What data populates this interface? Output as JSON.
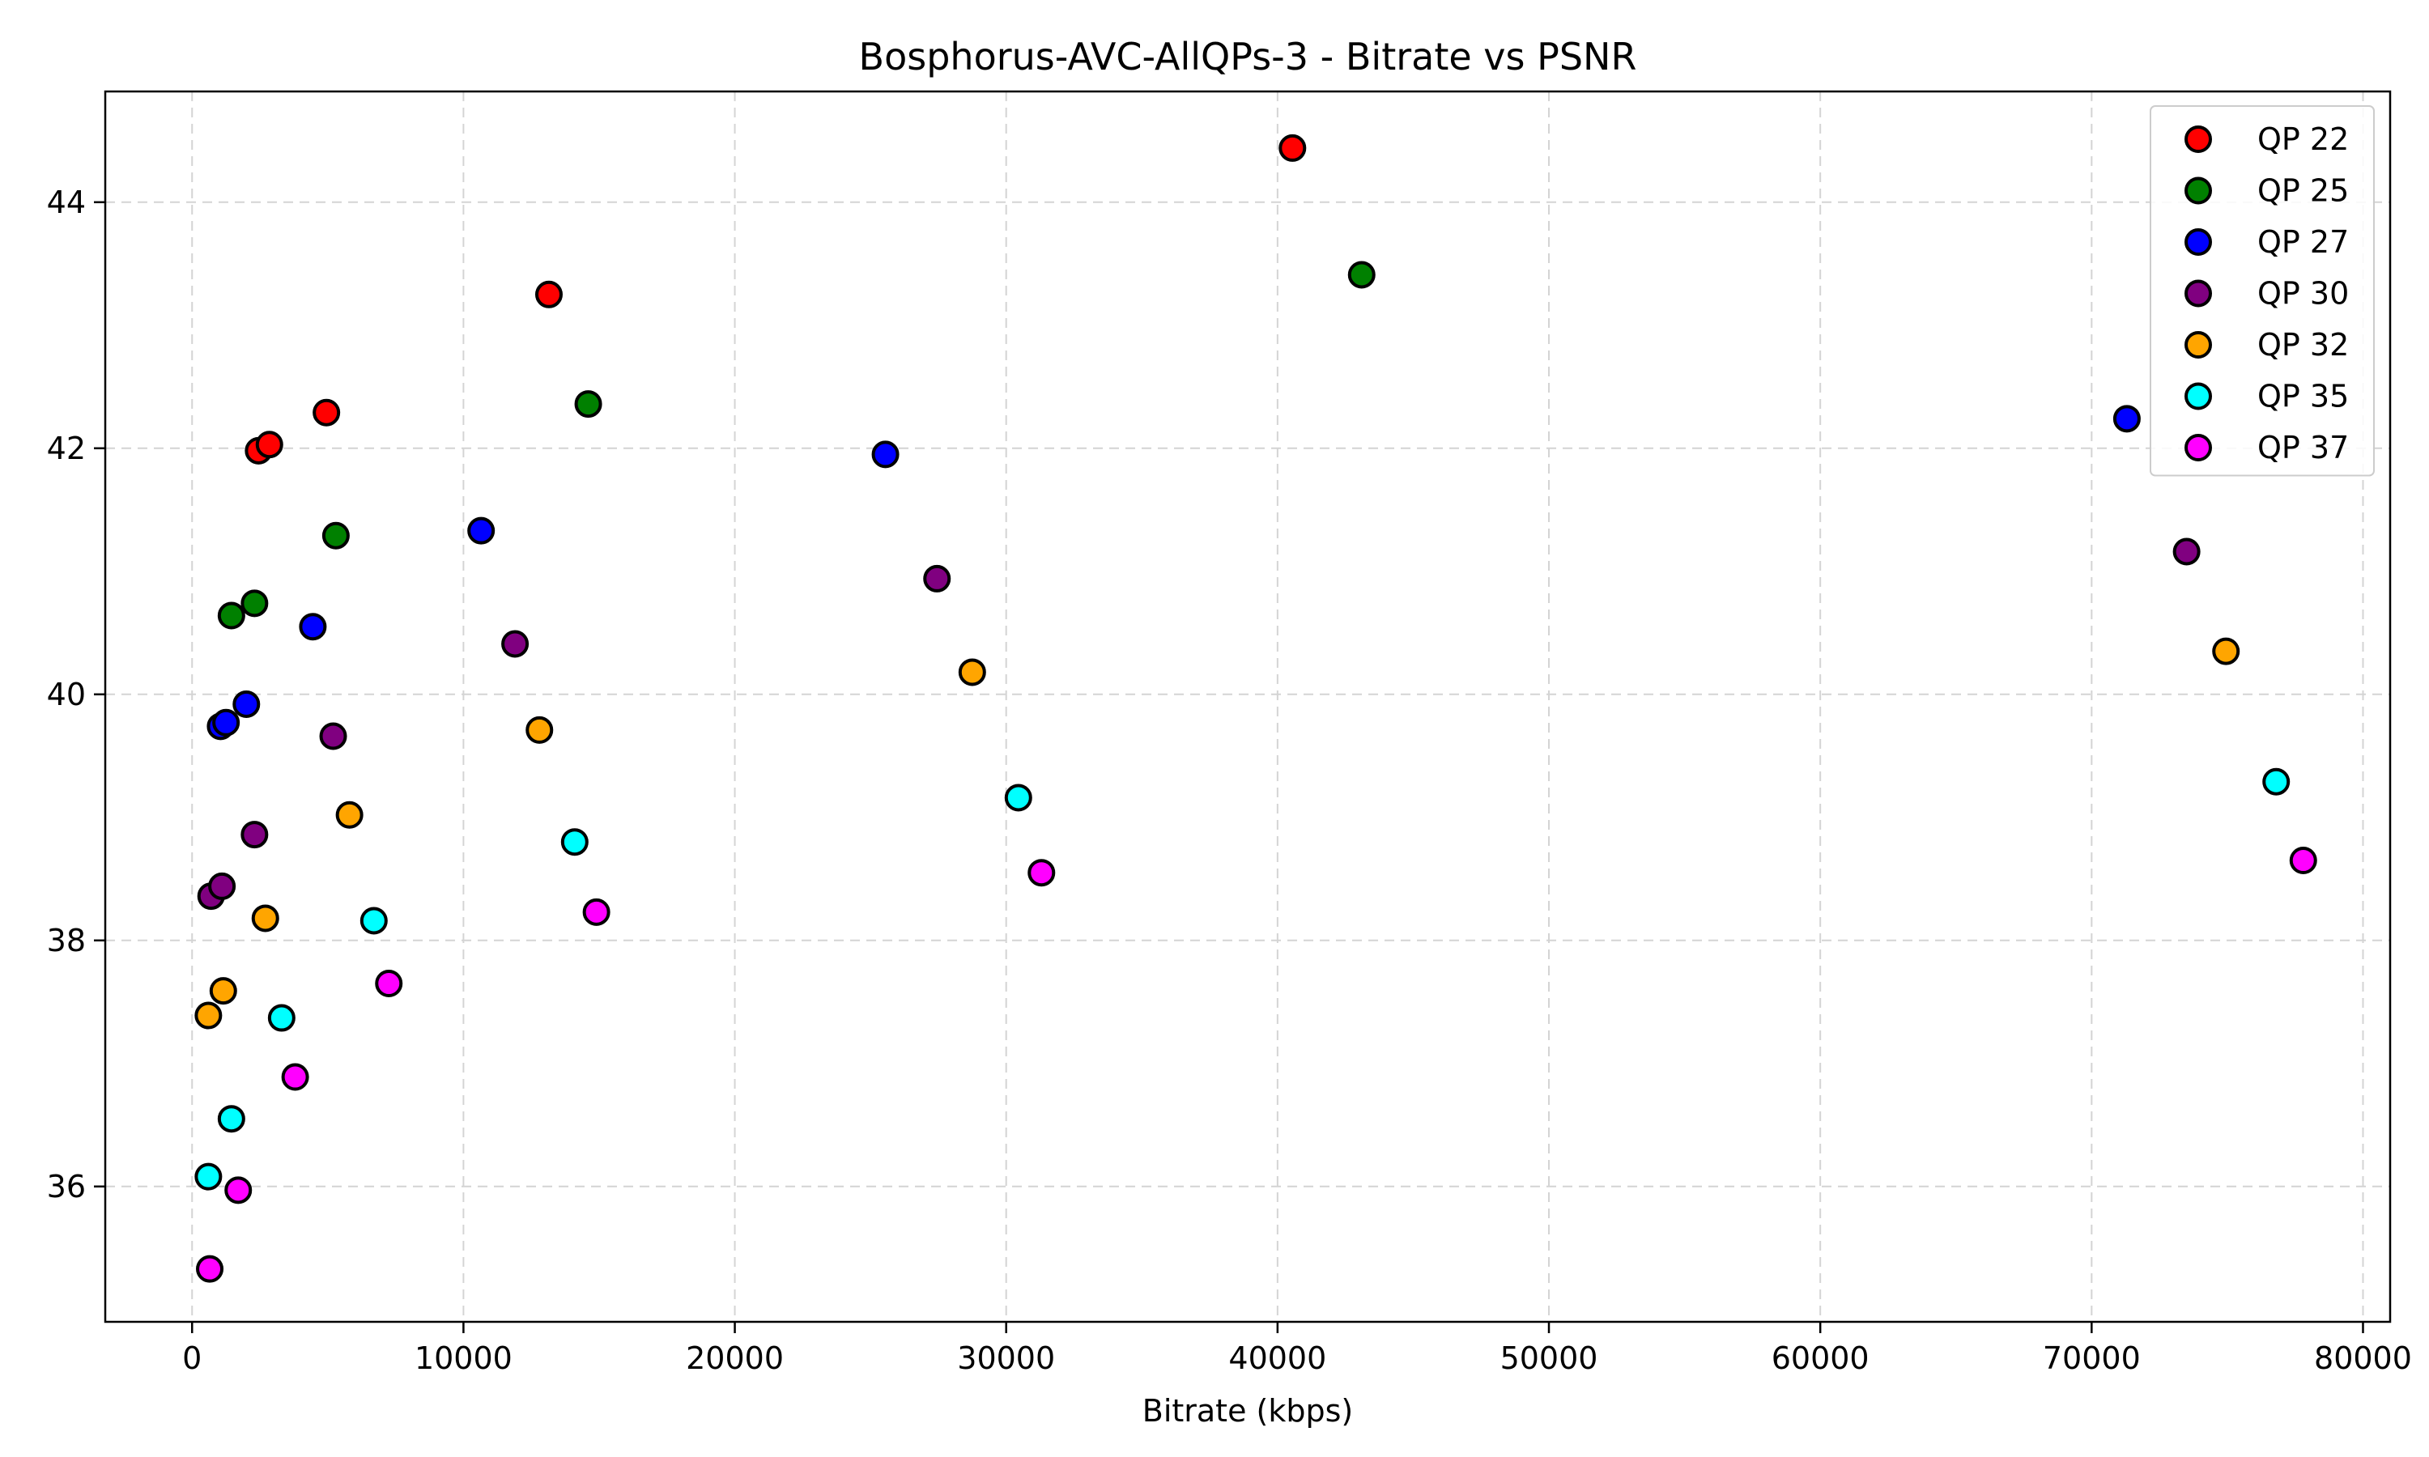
{
  "chart_data": {
    "type": "scatter",
    "title": "Bosphorus-AVC-AllQPs-3 - Bitrate vs PSNR",
    "xlabel": "Bitrate (kbps)",
    "ylabel": "",
    "xlim": [
      -3200,
      81000
    ],
    "ylim": [
      34.9,
      44.9
    ],
    "xticks": [
      0,
      10000,
      20000,
      30000,
      40000,
      50000,
      60000,
      70000,
      80000
    ],
    "yticks": [
      36,
      38,
      40,
      42,
      44
    ],
    "grid": true,
    "legend_position": "top-right",
    "series": [
      {
        "name": "QP 22",
        "color": "#ff0000",
        "points": [
          [
            2450,
            41.98
          ],
          [
            2850,
            42.03
          ],
          [
            4950,
            42.29
          ],
          [
            13150,
            43.25
          ],
          [
            40550,
            44.44
          ]
        ]
      },
      {
        "name": "QP 25",
        "color": "#008000",
        "points": [
          [
            1450,
            40.64
          ],
          [
            2300,
            40.74
          ],
          [
            5300,
            41.29
          ],
          [
            14600,
            42.36
          ],
          [
            43100,
            43.41
          ]
        ]
      },
      {
        "name": "QP 27",
        "color": "#0000ff",
        "points": [
          [
            1050,
            39.74
          ],
          [
            1250,
            39.77
          ],
          [
            2000,
            39.92
          ],
          [
            4450,
            40.55
          ],
          [
            10650,
            41.33
          ],
          [
            25550,
            41.95
          ],
          [
            71300,
            42.24
          ]
        ]
      },
      {
        "name": "QP 30",
        "color": "#800080",
        "points": [
          [
            700,
            38.36
          ],
          [
            1100,
            38.44
          ],
          [
            2300,
            38.86
          ],
          [
            5200,
            39.66
          ],
          [
            11900,
            40.41
          ],
          [
            27450,
            40.94
          ],
          [
            73500,
            41.16
          ]
        ]
      },
      {
        "name": "QP 32",
        "color": "#ffa500",
        "points": [
          [
            600,
            37.39
          ],
          [
            1150,
            37.59
          ],
          [
            2700,
            38.18
          ],
          [
            5800,
            39.02
          ],
          [
            12800,
            39.71
          ],
          [
            28750,
            40.18
          ],
          [
            74950,
            40.35
          ]
        ]
      },
      {
        "name": "QP 35",
        "color": "#00ffff",
        "points": [
          [
            600,
            36.08
          ],
          [
            1450,
            36.55
          ],
          [
            3300,
            37.37
          ],
          [
            6700,
            38.16
          ],
          [
            14100,
            38.8
          ],
          [
            30450,
            39.16
          ],
          [
            76800,
            39.29
          ]
        ]
      },
      {
        "name": "QP 37",
        "color": "#ff00ff",
        "points": [
          [
            650,
            35.33
          ],
          [
            1700,
            35.97
          ],
          [
            3800,
            36.89
          ],
          [
            7250,
            37.65
          ],
          [
            14900,
            38.23
          ],
          [
            31300,
            38.55
          ],
          [
            77800,
            38.65
          ]
        ]
      }
    ]
  }
}
